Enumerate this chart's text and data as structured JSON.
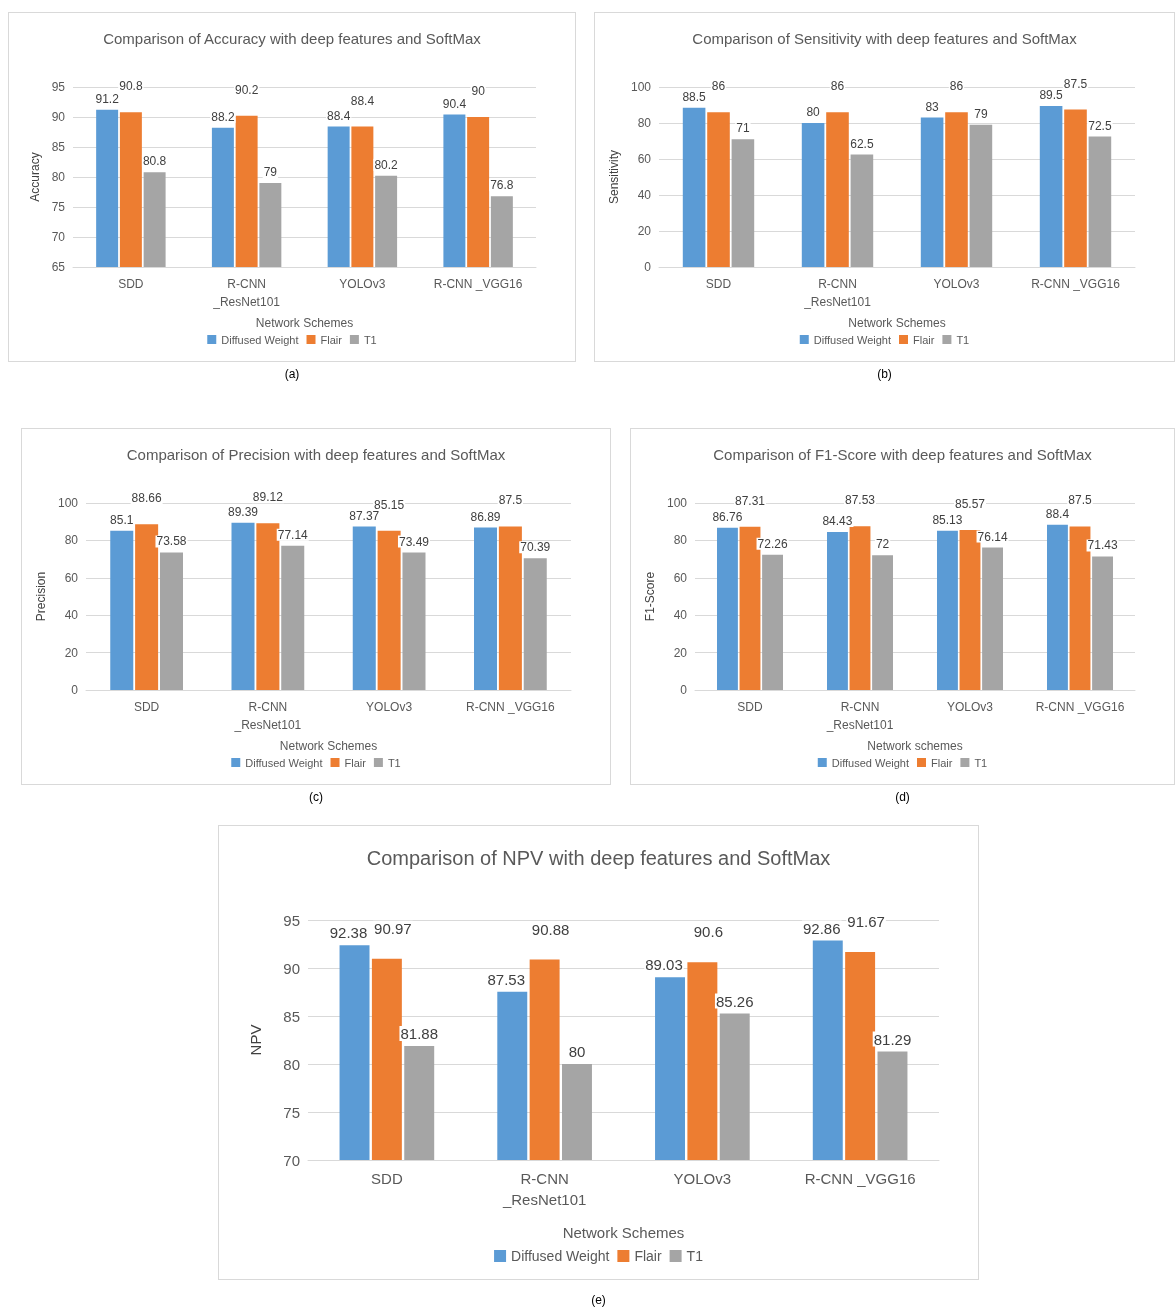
{
  "chart_data": [
    {
      "type": "bar",
      "title": "Comparison of Accuracy with deep features and SoftMax",
      "xlabel": "Network Schemes",
      "ylabel": "Accuracy",
      "categories": [
        "SDD",
        "R-CNN\n_ResNet101",
        "YOLOv3",
        "R-CNN _VGG16"
      ],
      "series": [
        {
          "name": "Diffused Weight",
          "color": "#5b9bd5",
          "values": [
            91.2,
            88.2,
            88.4,
            90.4
          ]
        },
        {
          "name": "Flair",
          "color": "#ed7d31",
          "values": [
            90.8,
            90.2,
            88.4,
            90
          ]
        },
        {
          "name": "T1",
          "color": "#a5a5a5",
          "values": [
            80.8,
            79,
            80.2,
            76.8
          ]
        }
      ],
      "ylim": [
        65,
        95
      ],
      "yticks": [
        65,
        70,
        75,
        80,
        85,
        90,
        95
      ],
      "grid": "y",
      "legend": "bottom",
      "data_labels": true,
      "annotations": [
        "(a)"
      ]
    },
    {
      "type": "bar",
      "title": "Comparison of Sensitivity with deep features and SoftMax",
      "xlabel": "Network Schemes",
      "ylabel": "Sensitivity",
      "categories": [
        "SDD",
        "R-CNN\n_ResNet101",
        "YOLOv3",
        "R-CNN _VGG16"
      ],
      "series": [
        {
          "name": "Diffused Weight",
          "color": "#5b9bd5",
          "values": [
            88.5,
            80,
            83,
            89.5
          ]
        },
        {
          "name": "Flair",
          "color": "#ed7d31",
          "values": [
            86,
            86,
            86,
            87.5
          ]
        },
        {
          "name": "T1",
          "color": "#a5a5a5",
          "values": [
            71,
            62.5,
            79,
            72.5
          ]
        }
      ],
      "ylim": [
        0,
        100
      ],
      "yticks": [
        0,
        20,
        40,
        60,
        80,
        100
      ],
      "grid": "y",
      "legend": "bottom",
      "data_labels": true,
      "annotations": [
        "(b)"
      ]
    },
    {
      "type": "bar",
      "title": "Comparison of Precision with deep features and SoftMax",
      "xlabel": "Network Schemes",
      "ylabel": "Precision",
      "categories": [
        "SDD",
        "R-CNN\n_ResNet101",
        "YOLOv3",
        "R-CNN _VGG16"
      ],
      "series": [
        {
          "name": "Diffused Weight",
          "color": "#5b9bd5",
          "values": [
            85.1,
            89.39,
            87.37,
            86.89
          ]
        },
        {
          "name": "Flair",
          "color": "#ed7d31",
          "values": [
            88.66,
            89.12,
            85.15,
            87.5
          ]
        },
        {
          "name": "T1",
          "color": "#a5a5a5",
          "values": [
            73.58,
            77.14,
            73.49,
            70.39
          ]
        }
      ],
      "ylim": [
        0,
        100
      ],
      "yticks": [
        0,
        20,
        40,
        60,
        80,
        100
      ],
      "grid": "y",
      "legend": "bottom",
      "data_labels": true,
      "annotations": [
        "(c)"
      ]
    },
    {
      "type": "bar",
      "title": "Comparison of F1-Score with deep features and SoftMax",
      "xlabel": "Network schemes",
      "ylabel": "F1-Score",
      "categories": [
        "SDD",
        "R-CNN\n_ResNet101",
        "YOLOv3",
        "R-CNN _VGG16"
      ],
      "series": [
        {
          "name": "Diffused Weight",
          "color": "#5b9bd5",
          "values": [
            86.76,
            84.43,
            85.13,
            88.4
          ]
        },
        {
          "name": "Flair",
          "color": "#ed7d31",
          "values": [
            87.31,
            87.53,
            85.57,
            87.5
          ]
        },
        {
          "name": "T1",
          "color": "#a5a5a5",
          "values": [
            72.26,
            72,
            76.14,
            71.43
          ]
        }
      ],
      "ylim": [
        0,
        100
      ],
      "yticks": [
        0,
        20,
        40,
        60,
        80,
        100
      ],
      "grid": "y",
      "legend": "bottom",
      "data_labels": true,
      "annotations": [
        "(d)"
      ]
    },
    {
      "type": "bar",
      "title": "Comparison of NPV with deep features and SoftMax",
      "xlabel": "Network Schemes",
      "ylabel": "NPV",
      "categories": [
        "SDD",
        "R-CNN\n_ResNet101",
        "YOLOv3",
        "R-CNN _VGG16"
      ],
      "series": [
        {
          "name": "Diffused Weight",
          "color": "#5b9bd5",
          "values": [
            92.38,
            87.53,
            89.03,
            92.86
          ]
        },
        {
          "name": "Flair",
          "color": "#ed7d31",
          "values": [
            90.97,
            90.88,
            90.6,
            91.67
          ]
        },
        {
          "name": "T1",
          "color": "#a5a5a5",
          "values": [
            81.88,
            80,
            85.26,
            81.29
          ]
        }
      ],
      "ylim": [
        70,
        95
      ],
      "yticks": [
        70,
        75,
        80,
        85,
        90,
        95
      ],
      "grid": "y",
      "legend": "bottom",
      "data_labels": true,
      "annotations": [
        "(e)"
      ]
    }
  ]
}
